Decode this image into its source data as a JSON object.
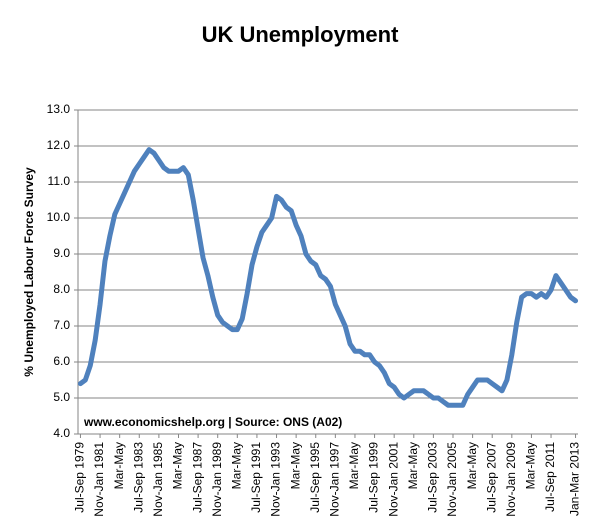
{
  "chart_data": {
    "type": "line",
    "title": "UK Unemployment",
    "y_label": "% Unemployed Labour Force Survey",
    "annotation": "www.economicshelp.org | Source: ONS (A02)",
    "categories": [
      "Jul-Sep 1979",
      null,
      null,
      null,
      "Nov-Jan 1981",
      null,
      null,
      null,
      "Mar-May",
      null,
      null,
      null,
      "Jul-Sep 1983",
      null,
      null,
      null,
      "Nov-Jan 1985",
      null,
      null,
      null,
      "Mar-May",
      null,
      null,
      null,
      "Jul-Sep 1987",
      null,
      null,
      null,
      "Nov-Jan 1989",
      null,
      null,
      null,
      "Mar-May",
      null,
      null,
      null,
      "Jul-Sep 1991",
      null,
      null,
      null,
      "Nov-Jan 1993",
      null,
      null,
      null,
      "Mar-May",
      null,
      null,
      null,
      "Jul-Sep 1995",
      null,
      null,
      null,
      "Nov-Jan 1997",
      null,
      null,
      null,
      "Mar-May",
      null,
      null,
      null,
      "Jul-Sep 1999",
      null,
      null,
      null,
      "Nov-Jan 2001",
      null,
      null,
      null,
      "Mar-May",
      null,
      null,
      null,
      "Jul-Sep 2003",
      null,
      null,
      null,
      "Nov-Jan 2005",
      null,
      null,
      null,
      "Mar-May",
      null,
      null,
      null,
      "Jul-Sep 2007",
      null,
      null,
      null,
      "Nov-Jan 2009",
      null,
      null,
      null,
      "Mar-May",
      null,
      null,
      null,
      "Jul-Sep 2011",
      null,
      null,
      null,
      null,
      "Jan-Mar 2013"
    ],
    "series": [
      {
        "color": "#4f81bd",
        "values": [
          5.4,
          5.5,
          5.9,
          6.6,
          7.6,
          8.8,
          9.5,
          10.1,
          10.4,
          10.7,
          11.0,
          11.3,
          11.5,
          11.7,
          11.9,
          11.8,
          11.6,
          11.4,
          11.3,
          11.3,
          11.3,
          11.4,
          11.2,
          10.5,
          9.7,
          8.9,
          8.4,
          7.8,
          7.3,
          7.1,
          7.0,
          6.9,
          6.9,
          7.2,
          7.9,
          8.7,
          9.2,
          9.6,
          9.8,
          10.0,
          10.6,
          10.5,
          10.3,
          10.2,
          9.8,
          9.5,
          9.0,
          8.8,
          8.7,
          8.4,
          8.3,
          8.1,
          7.6,
          7.3,
          7.0,
          6.5,
          6.3,
          6.3,
          6.2,
          6.2,
          6.0,
          5.9,
          5.7,
          5.4,
          5.3,
          5.1,
          5.0,
          5.1,
          5.2,
          5.2,
          5.2,
          5.1,
          5.0,
          5.0,
          4.9,
          4.8,
          4.8,
          4.8,
          4.8,
          5.1,
          5.3,
          5.5,
          5.5,
          5.5,
          5.4,
          5.3,
          5.2,
          5.5,
          6.2,
          7.1,
          7.8,
          7.9,
          7.9,
          7.8,
          7.9,
          7.8,
          8.0,
          8.4,
          8.2,
          8.0,
          7.8,
          7.7
        ]
      }
    ],
    "ylim": [
      4,
      13
    ],
    "yticks": [
      {
        "value": 4,
        "label": "4.0"
      },
      {
        "value": 5,
        "label": "5.0"
      },
      {
        "value": 6,
        "label": "6.0"
      },
      {
        "value": 7,
        "label": "7.0"
      },
      {
        "value": 8,
        "label": "8.0"
      },
      {
        "value": 9,
        "label": "9.0"
      },
      {
        "value": 10,
        "label": "10.0"
      },
      {
        "value": 11,
        "label": "11.0"
      },
      {
        "value": 12,
        "label": "12.0"
      },
      {
        "value": 13,
        "label": "13.0"
      }
    ],
    "grid": true
  }
}
